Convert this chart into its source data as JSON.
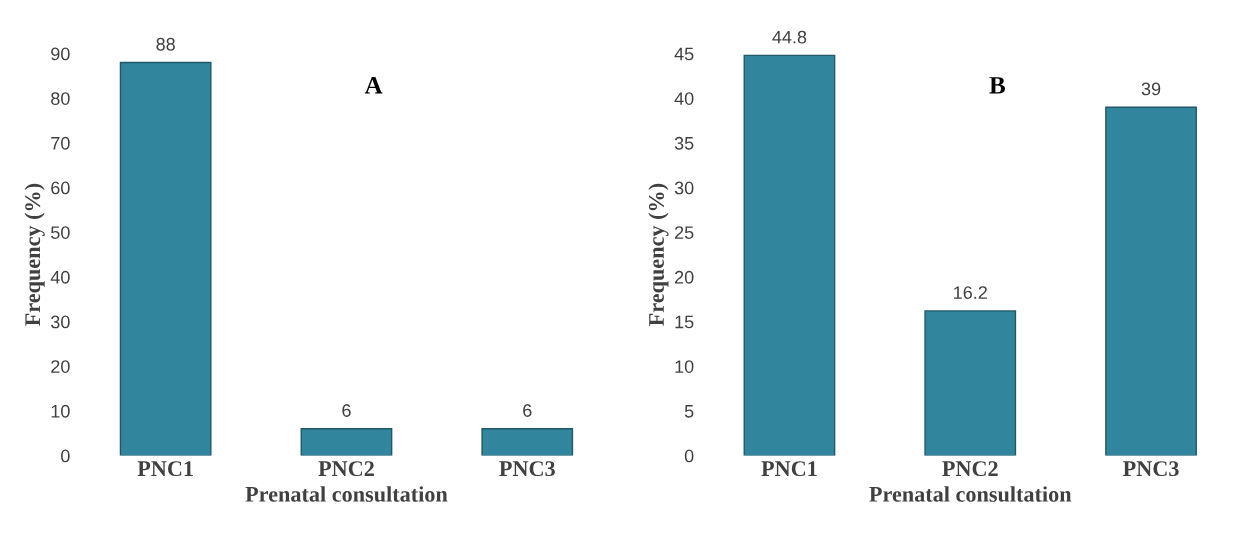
{
  "chart_data": [
    {
      "type": "bar",
      "title": "A",
      "xlabel": "Prenatal consultation",
      "ylabel": "Frequency (%)",
      "categories": [
        "PNC1",
        "PNC2",
        "PNC3"
      ],
      "values": [
        88,
        6,
        6
      ],
      "color": "#31859c",
      "ylim": [
        0,
        90
      ],
      "yticks": [
        0,
        10,
        20,
        30,
        40,
        50,
        60,
        70,
        80,
        90
      ],
      "data_labels": true,
      "grid": false
    },
    {
      "type": "bar",
      "title": "B",
      "xlabel": "Prenatal consultation",
      "ylabel": "Frequency (%)",
      "categories": [
        "PNC1",
        "PNC2",
        "PNC3"
      ],
      "values": [
        44.8,
        16.2,
        39
      ],
      "color": "#31859c",
      "ylim": [
        0,
        45
      ],
      "yticks": [
        0,
        5,
        10,
        15,
        20,
        25,
        30,
        35,
        40,
        45
      ],
      "data_labels": true,
      "grid": false
    }
  ]
}
